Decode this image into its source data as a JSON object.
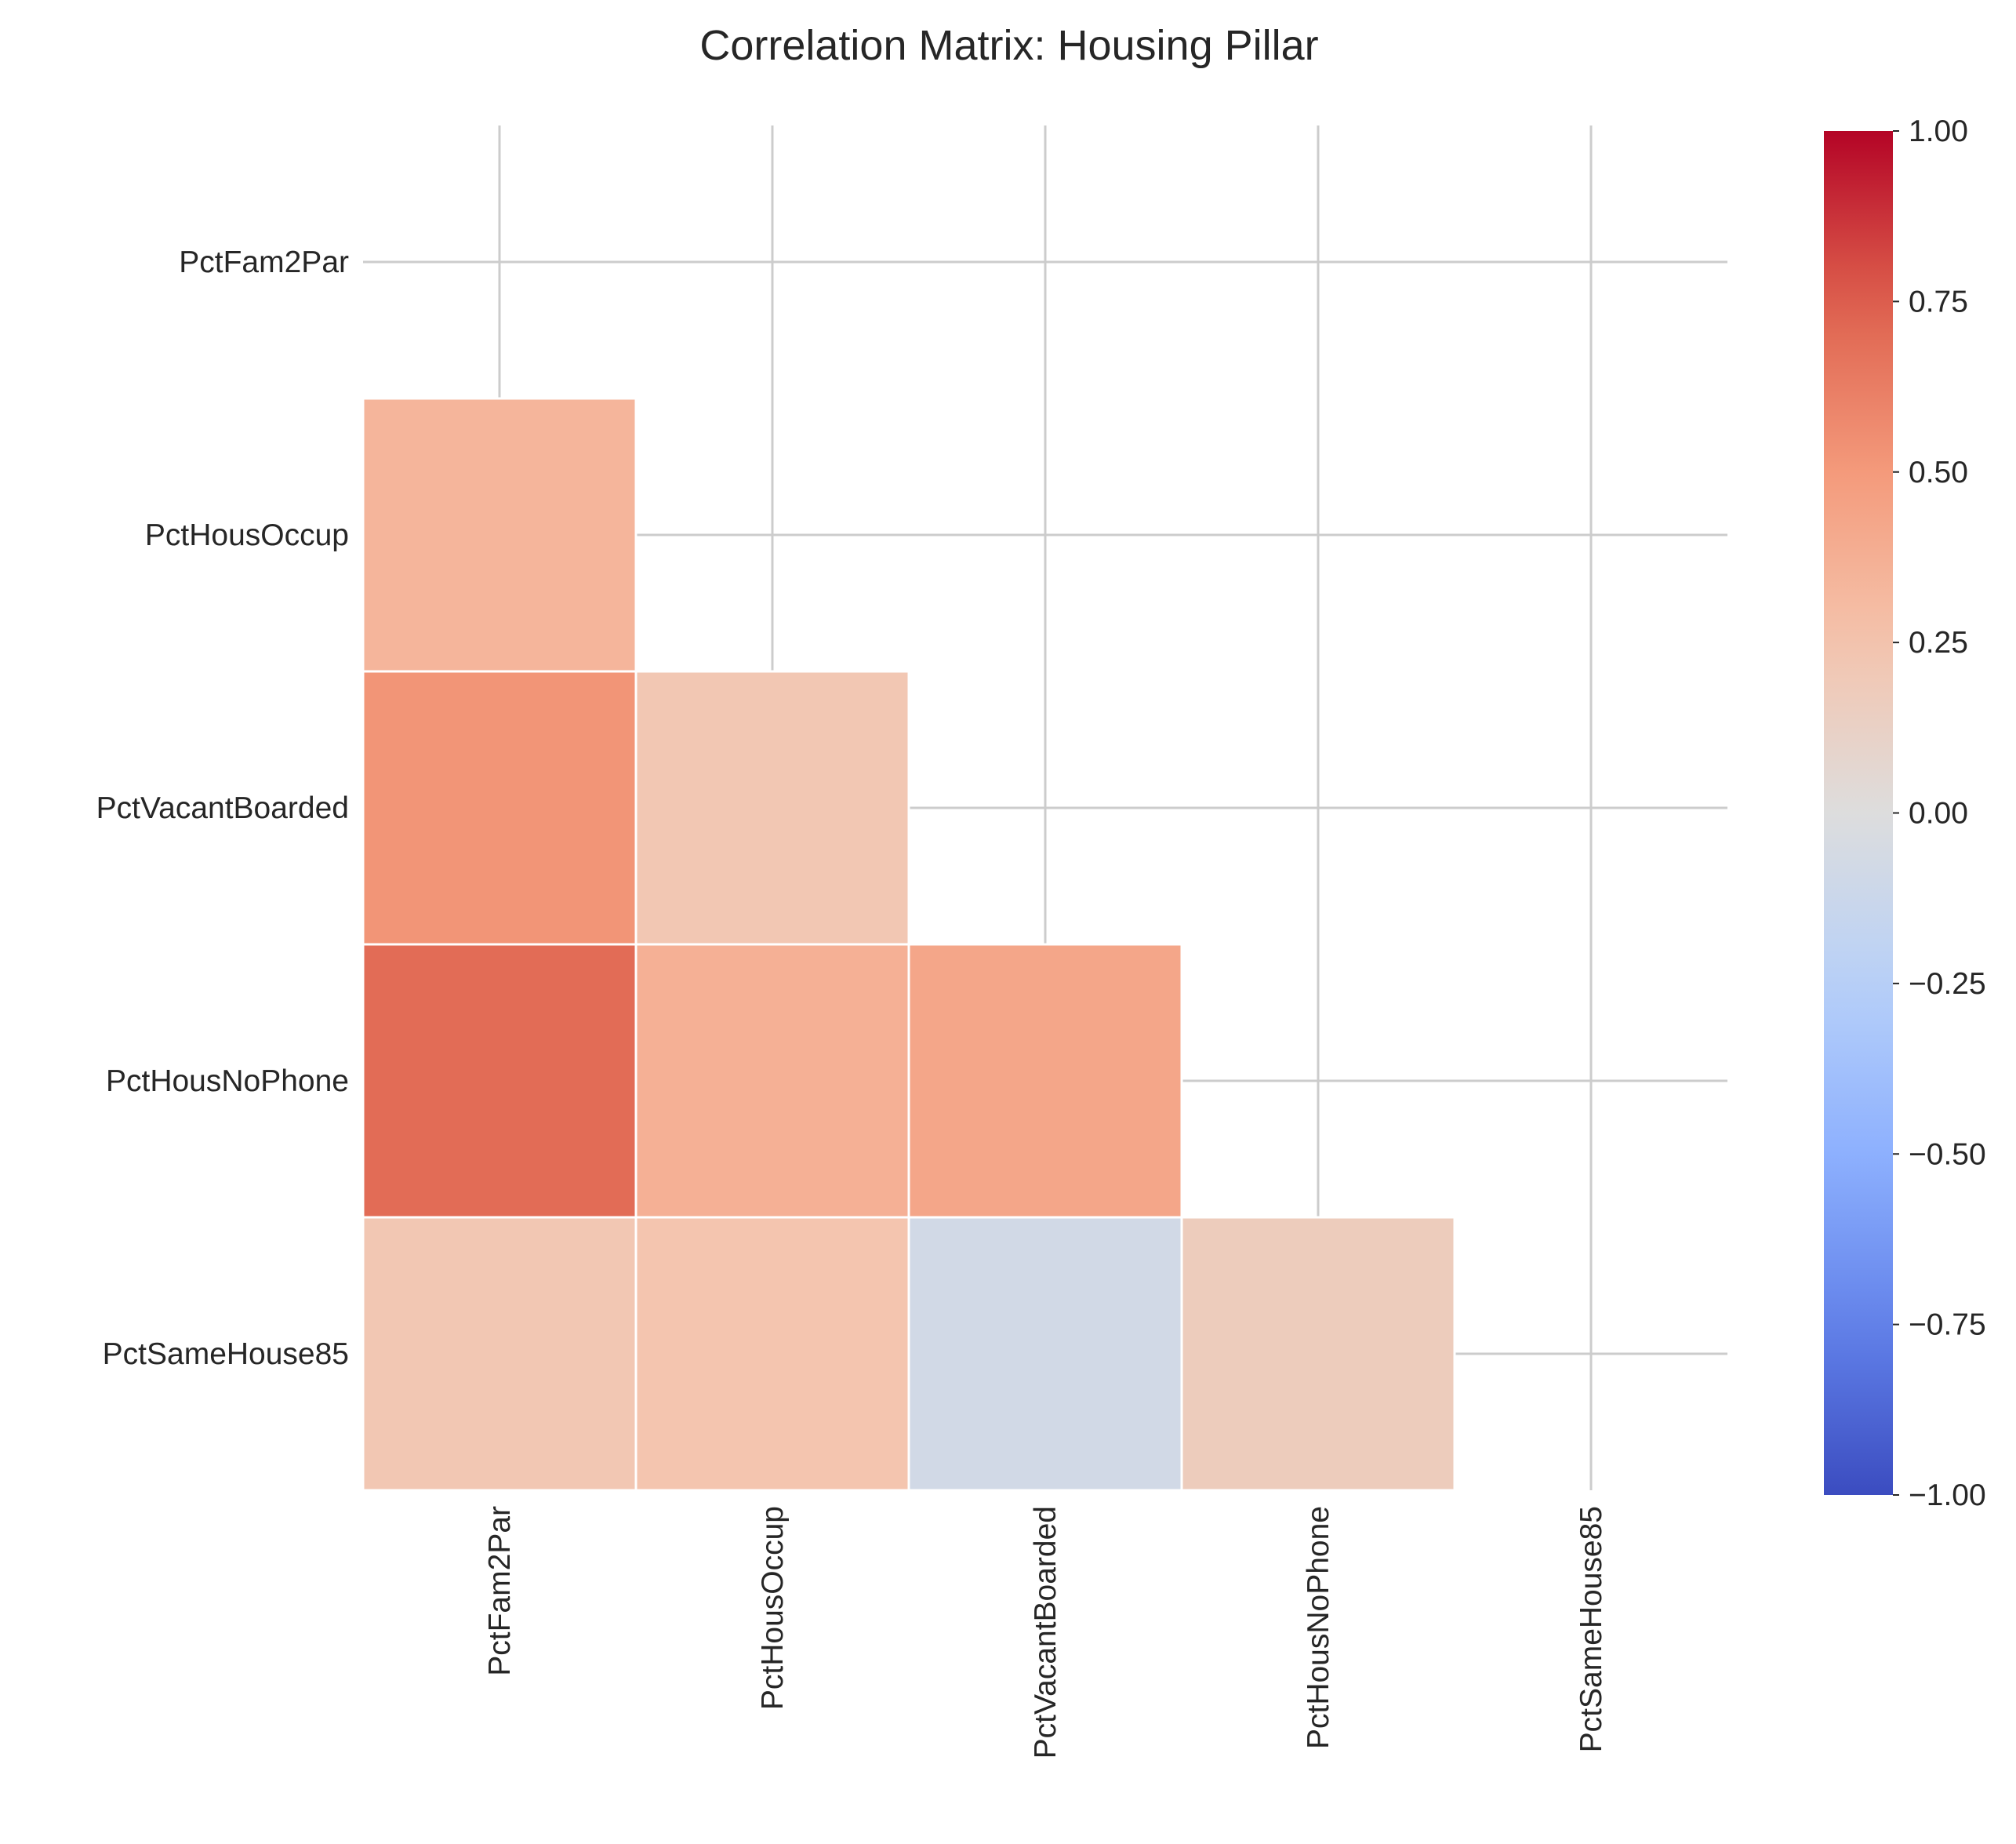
{
  "chart_data": {
    "type": "heatmap",
    "title": "Correlation Matrix: Housing Pillar",
    "xlabel": "",
    "ylabel": "",
    "variables": [
      "PctFam2Par",
      "PctHousOccup",
      "PctVacantBoarded",
      "PctHousNoPhone",
      "PctSameHouse85"
    ],
    "mask": "upper-triangle-including-diagonal",
    "cells": [
      {
        "row": "PctHousOccup",
        "col": "PctFam2Par",
        "value": 0.34
      },
      {
        "row": "PctVacantBoarded",
        "col": "PctFam2Par",
        "value": 0.52
      },
      {
        "row": "PctVacantBoarded",
        "col": "PctHousOccup",
        "value": 0.22
      },
      {
        "row": "PctHousNoPhone",
        "col": "PctFam2Par",
        "value": 0.7
      },
      {
        "row": "PctHousNoPhone",
        "col": "PctHousOccup",
        "value": 0.37
      },
      {
        "row": "PctHousNoPhone",
        "col": "PctVacantBoarded",
        "value": 0.43
      },
      {
        "row": "PctSameHouse85",
        "col": "PctFam2Par",
        "value": 0.22
      },
      {
        "row": "PctSameHouse85",
        "col": "PctHousOccup",
        "value": 0.24
      },
      {
        "row": "PctSameHouse85",
        "col": "PctVacantBoarded",
        "value": -0.08
      },
      {
        "row": "PctSameHouse85",
        "col": "PctHousNoPhone",
        "value": 0.17
      }
    ],
    "colorbar": {
      "colormap": "coolwarm",
      "vmin": -1.0,
      "vmax": 1.0,
      "ticks": [
        1.0,
        0.75,
        0.5,
        0.25,
        0.0,
        -0.25,
        -0.5,
        -0.75,
        -1.0
      ],
      "tick_labels": [
        "1.00",
        "0.75",
        "0.50",
        "0.25",
        "0.00",
        "−0.25",
        "−0.50",
        "−0.75",
        "−1.00"
      ],
      "placement": "right"
    },
    "grid": true,
    "colors": {
      "background": "#ffffff",
      "grid": "#cccccc",
      "cell_border": "#ffffff",
      "text": "#262626"
    }
  }
}
